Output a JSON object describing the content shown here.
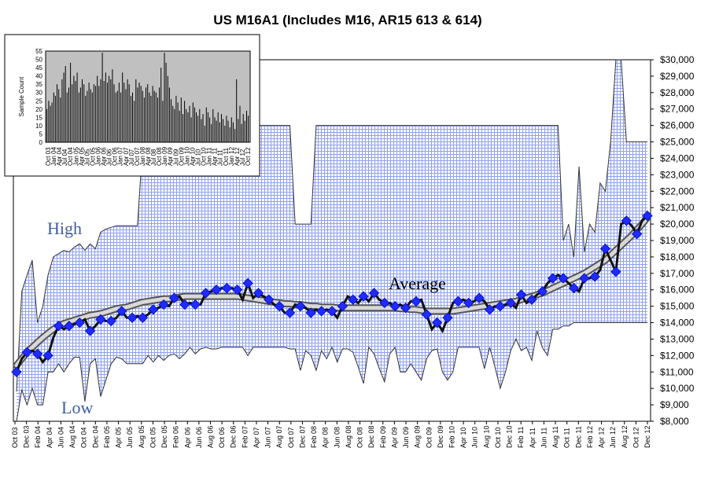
{
  "chart_data": {
    "type": "line",
    "title": "US M16A1 (Includes M16, AR15 613 & 614)",
    "y_axis": {
      "min": 8000,
      "max": 30000,
      "step": 1000,
      "tick_labels": [
        "$8,000",
        "$9,000",
        "$10,000",
        "$11,000",
        "$12,000",
        "$13,000",
        "$14,000",
        "$15,000",
        "$16,000",
        "$17,000",
        "$18,000",
        "$19,000",
        "$20,000",
        "$21,000",
        "$22,000",
        "$23,000",
        "$24,000",
        "$25,000",
        "$26,000",
        "$27,000",
        "$28,000",
        "$29,000",
        "$30,000"
      ]
    },
    "x_tick_labels": [
      "Oct 03",
      "Dec 03",
      "Feb 04",
      "Apr 04",
      "Jun 04",
      "Aug 04",
      "Oct 04",
      "Dec 04",
      "Feb 05",
      "Apr 05",
      "Jun 05",
      "Aug 05",
      "Oct 05",
      "Dec 05",
      "Feb 06",
      "Apr 06",
      "Jun 06",
      "Aug 06",
      "Oct 06",
      "Dec 06",
      "Feb 07",
      "Apr 07",
      "Jun 07",
      "Aug 07",
      "Oct 07",
      "Dec 07",
      "Feb 08",
      "Apr 08",
      "Jun 08",
      "Aug 08",
      "Oct 08",
      "Dec 08",
      "Feb 09",
      "Apr 09",
      "Jun 09",
      "Aug 09",
      "Oct 09",
      "Dec 09",
      "Feb 10",
      "Apr 10",
      "Jun 10",
      "Aug 10",
      "Oct 10",
      "Dec 10",
      "Feb 11",
      "Apr 11",
      "Jun 11",
      "Aug 11",
      "Oct 11",
      "Dec 11",
      "Feb 12",
      "Apr 12",
      "Jun 12",
      "Aug 12",
      "Oct 12",
      "Dec 12"
    ],
    "annotations": {
      "high": "High",
      "low": "Low",
      "average": "Average"
    },
    "grid": true,
    "series": [
      {
        "role": "average",
        "values": [
          11000,
          11800,
          12200,
          12300,
          12100,
          11600,
          12000,
          13100,
          13800,
          13600,
          13800,
          13900,
          14000,
          14200,
          13500,
          13800,
          14200,
          14100,
          14100,
          14300,
          14700,
          14300,
          14300,
          14400,
          14300,
          14500,
          14800,
          14900,
          15100,
          15000,
          15500,
          15600,
          15100,
          15200,
          15100,
          15100,
          15800,
          15900,
          16000,
          16100,
          16100,
          16100,
          16000,
          15400,
          16400,
          15500,
          15800,
          15600,
          15400,
          15100,
          15000,
          14600,
          14600,
          15100,
          15000,
          14900,
          14600,
          14800,
          14700,
          14800,
          14700,
          14300,
          15000,
          15600,
          15400,
          15200,
          15600,
          15300,
          15800,
          15400,
          15200,
          15200,
          15000,
          15100,
          14900,
          15300,
          15300,
          15400,
          14500,
          13600,
          14000,
          13500,
          14300,
          15200,
          15300,
          15400,
          15200,
          15300,
          15500,
          15300,
          14800,
          15000,
          15000,
          15100,
          15200,
          14900,
          15700,
          15200,
          15400,
          15700,
          15900,
          16400,
          16700,
          16900,
          16700,
          16400,
          16100,
          15900,
          16700,
          16700,
          16800,
          17200,
          18500,
          17800,
          17100,
          20000,
          20200,
          19900,
          19400,
          20200,
          20500
        ]
      },
      {
        "role": "high",
        "values": [
          9800,
          15900,
          16900,
          17800,
          14000,
          15000,
          16900,
          18000,
          18200,
          18400,
          18300,
          18600,
          18800,
          18400,
          18800,
          18500,
          19500,
          19700,
          19800,
          19900,
          19900,
          19900,
          19900,
          19900,
          24800,
          26000,
          26000,
          26000,
          26000,
          26000,
          26000,
          26000,
          26000,
          26000,
          26000,
          26000,
          26000,
          26000,
          26000,
          26000,
          26000,
          26000,
          26000,
          26000,
          26000,
          26000,
          26000,
          26000,
          26000,
          26000,
          26000,
          26000,
          26000,
          20000,
          20000,
          20000,
          20000,
          26000,
          26000,
          26000,
          26000,
          26000,
          26000,
          26000,
          26000,
          26000,
          26000,
          26000,
          26000,
          26000,
          26000,
          26000,
          26000,
          26000,
          26000,
          26000,
          26000,
          26000,
          26000,
          26000,
          26000,
          26000,
          26000,
          26000,
          26000,
          26000,
          26000,
          26000,
          26000,
          26000,
          26000,
          26000,
          26000,
          26000,
          26000,
          26000,
          26000,
          26000,
          26000,
          26000,
          26000,
          26000,
          26000,
          26000,
          19000,
          20000,
          18000,
          23500,
          18300,
          20000,
          19500,
          22500,
          22000,
          25000,
          30000,
          30000,
          25000,
          25000,
          25000,
          25000,
          25000
        ]
      },
      {
        "role": "low",
        "values": [
          8000,
          9900,
          9000,
          10000,
          9000,
          9000,
          11000,
          11000,
          11500,
          11000,
          11500,
          11900,
          11900,
          9200,
          11500,
          11800,
          9500,
          10500,
          11500,
          11900,
          11800,
          11500,
          11500,
          11500,
          11500,
          12000,
          11600,
          12000,
          11700,
          12000,
          12100,
          11800,
          12100,
          12500,
          12100,
          12400,
          12500,
          12400,
          12400,
          12500,
          12500,
          12500,
          12500,
          12500,
          12000,
          12500,
          12500,
          12500,
          12500,
          12500,
          12500,
          12500,
          12400,
          12400,
          11100,
          12300,
          12000,
          11100,
          12300,
          11800,
          12500,
          11600,
          12400,
          12400,
          12200,
          11300,
          10300,
          12500,
          12100,
          11200,
          10400,
          12100,
          12500,
          11000,
          11000,
          11500,
          11000,
          10500,
          11800,
          12300,
          12400,
          11000,
          10500,
          11000,
          12500,
          12500,
          12500,
          12500,
          12500,
          11200,
          12500,
          11300,
          10000,
          11000,
          12300,
          13000,
          12300,
          12500,
          11700,
          13500,
          12500,
          12000,
          13600,
          13600,
          13800,
          13800,
          14000,
          14000,
          14000,
          14000,
          14000,
          14000,
          14000,
          14000,
          14000,
          14000,
          14000,
          14000,
          14000,
          14000,
          14000
        ]
      },
      {
        "role": "trend",
        "values": [
          11400,
          11800,
          12200,
          12500,
          12800,
          13100,
          13350,
          13600,
          13800,
          13950,
          14050,
          14150,
          14250,
          14350,
          14450,
          14500,
          14550,
          14650,
          14750,
          14850,
          14900,
          14950,
          15050,
          15150,
          15250,
          15300,
          15350,
          15400,
          15450,
          15450,
          15500,
          15550,
          15600,
          15600,
          15600,
          15600,
          15600,
          15600,
          15600,
          15600,
          15600,
          15600,
          15600,
          15550,
          15500,
          15450,
          15400,
          15350,
          15300,
          15250,
          15200,
          15150,
          15150,
          15100,
          15100,
          15050,
          15000,
          15000,
          14950,
          14950,
          14950,
          14900,
          14900,
          14900,
          14900,
          14900,
          14900,
          14900,
          14900,
          14900,
          14900,
          14900,
          14900,
          14850,
          14850,
          14800,
          14800,
          14750,
          14700,
          14700,
          14700,
          14700,
          14700,
          14700,
          14750,
          14800,
          14850,
          14900,
          14950,
          15000,
          15050,
          15100,
          15150,
          15200,
          15250,
          15300,
          15400,
          15500,
          15600,
          15700,
          15800,
          15950,
          16100,
          16250,
          16400,
          16550,
          16700,
          16850,
          17000,
          17200,
          17400,
          17600,
          17800,
          18100,
          18400,
          18700,
          19000,
          19300,
          19650,
          20000,
          20400
        ]
      }
    ],
    "inset": {
      "type": "bar",
      "ylabel": "Sample Count",
      "ylim": [
        0,
        55
      ],
      "y_tick_labels": [
        "0",
        "5",
        "10",
        "15",
        "20",
        "25",
        "30",
        "35",
        "40",
        "45",
        "50",
        "55"
      ],
      "x_tick_labels": [
        "Oct 03",
        "Jan 04",
        "Apr 04",
        "Jul 04",
        "Oct 04",
        "Jan 05",
        "Apr 05",
        "Jul 05",
        "Oct 05",
        "Jan 06",
        "Apr 06",
        "Jul 06",
        "Oct 06",
        "Jan 07",
        "Apr 07",
        "Jul 07",
        "Oct 07",
        "Jan 08",
        "Apr 08",
        "Jul 08",
        "Oct 08",
        "Jan 09",
        "Apr 09",
        "Jul 09",
        "Oct 09",
        "Jan 10",
        "Apr 10",
        "Jul 10",
        "Oct 10",
        "Jan 11",
        "Apr 11",
        "Jul 11",
        "Oct 11",
        "Jan 12",
        "Apr 12",
        "Jul 12",
        "Oct 12"
      ],
      "values": [
        20,
        25,
        22,
        24,
        30,
        28,
        35,
        32,
        27,
        38,
        42,
        46,
        30,
        33,
        48,
        35,
        40,
        37,
        42,
        30,
        33,
        38,
        35,
        28,
        31,
        36,
        32,
        30,
        35,
        34,
        40,
        34,
        38,
        54,
        37,
        42,
        36,
        40,
        38,
        44,
        35,
        30,
        31,
        36,
        30,
        42,
        36,
        32,
        38,
        35,
        28,
        30,
        25,
        38,
        33,
        36,
        34,
        31,
        27,
        33,
        35,
        30,
        28,
        34,
        31,
        30,
        27,
        33,
        45,
        25,
        54,
        48,
        40,
        33,
        26,
        22,
        20,
        28,
        24,
        19,
        27,
        17,
        25,
        20,
        18,
        22,
        15,
        24,
        21,
        18,
        16,
        20,
        14,
        17,
        10,
        21,
        18,
        15,
        11,
        20,
        15,
        13,
        18,
        12,
        17,
        14,
        10,
        16,
        13,
        9,
        15,
        12,
        8,
        38,
        14,
        22,
        11,
        17,
        13,
        19,
        16
      ]
    }
  }
}
